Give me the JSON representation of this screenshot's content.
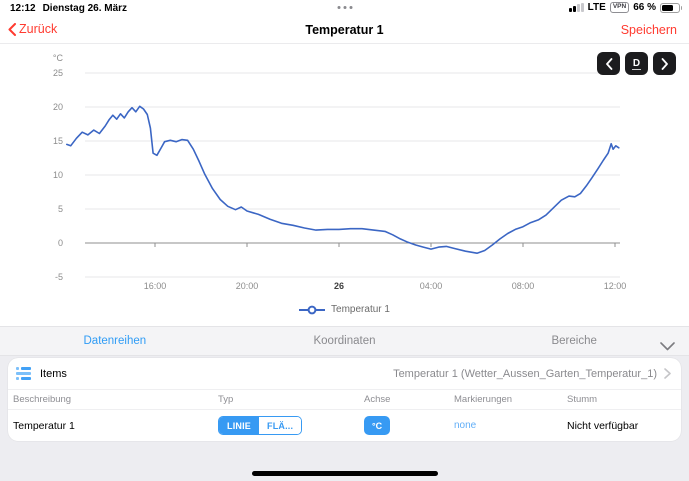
{
  "status_bar": {
    "time": "12:12",
    "date": "Dienstag 26. März",
    "carrier": "LTE",
    "vpn_label": "VPN",
    "battery_text": "66 %"
  },
  "nav": {
    "back_label": "Zurück",
    "title": "Temperatur 1",
    "save_label": "Speichern"
  },
  "chart_toolbar": {
    "range_label": "D"
  },
  "chart_data": {
    "type": "line",
    "unit_label": "°C",
    "ylim": [
      -5,
      25
    ],
    "y_ticks": [
      25,
      20,
      15,
      10,
      5,
      0,
      -5
    ],
    "grid": true,
    "x_axis": {
      "origin": "25.03 12:00",
      "ticks": [
        {
          "label": "16:00",
          "time": "25.03 16:00",
          "emphasis": false
        },
        {
          "label": "20:00",
          "time": "25.03 20:00",
          "emphasis": false
        },
        {
          "label": "26",
          "time": "26.03 00:00",
          "emphasis": true
        },
        {
          "label": "04:00",
          "time": "26.03 04:00",
          "emphasis": false
        },
        {
          "label": "08:00",
          "time": "26.03 08:00",
          "emphasis": false
        },
        {
          "label": "12:00",
          "time": "26.03 12:00",
          "emphasis": false
        }
      ]
    },
    "legend": {
      "position": "bottom"
    },
    "series": [
      {
        "name": "Temperatur 1",
        "color": "#3b66c4",
        "points": [
          [
            "25.03 12:10",
            14.5
          ],
          [
            "25.03 12:20",
            14.3
          ],
          [
            "25.03 12:35",
            15.4
          ],
          [
            "25.03 12:50",
            16.3
          ],
          [
            "25.03 13:05",
            15.9
          ],
          [
            "25.03 13:20",
            16.6
          ],
          [
            "25.03 13:35",
            16.1
          ],
          [
            "25.03 13:50",
            17.2
          ],
          [
            "25.03 14:00",
            18.1
          ],
          [
            "25.03 14:10",
            18.8
          ],
          [
            "25.03 14:20",
            18.2
          ],
          [
            "25.03 14:30",
            19.0
          ],
          [
            "25.03 14:40",
            18.4
          ],
          [
            "25.03 14:50",
            19.3
          ],
          [
            "25.03 15:00",
            19.9
          ],
          [
            "25.03 15:10",
            19.3
          ],
          [
            "25.03 15:20",
            20.1
          ],
          [
            "25.03 15:30",
            19.7
          ],
          [
            "25.03 15:40",
            18.9
          ],
          [
            "25.03 15:48",
            16.9
          ],
          [
            "25.03 15:55",
            13.2
          ],
          [
            "25.03 16:05",
            12.9
          ],
          [
            "25.03 16:15",
            13.9
          ],
          [
            "25.03 16:25",
            14.9
          ],
          [
            "25.03 16:40",
            15.1
          ],
          [
            "25.03 16:55",
            14.9
          ],
          [
            "25.03 17:10",
            15.2
          ],
          [
            "25.03 17:25",
            15.1
          ],
          [
            "25.03 17:40",
            13.8
          ],
          [
            "25.03 17:55",
            12.0
          ],
          [
            "25.03 18:10",
            10.1
          ],
          [
            "25.03 18:30",
            8.0
          ],
          [
            "25.03 18:50",
            6.4
          ],
          [
            "25.03 19:10",
            5.4
          ],
          [
            "25.03 19:30",
            4.9
          ],
          [
            "25.03 19:45",
            5.3
          ],
          [
            "25.03 20:00",
            4.7
          ],
          [
            "25.03 20:30",
            4.2
          ],
          [
            "25.03 21:00",
            3.5
          ],
          [
            "25.03 21:30",
            2.9
          ],
          [
            "25.03 22:00",
            2.6
          ],
          [
            "25.03 22:30",
            2.2
          ],
          [
            "25.03 23:00",
            1.9
          ],
          [
            "25.03 23:30",
            2.0
          ],
          [
            "26.03 00:00",
            2.0
          ],
          [
            "26.03 00:30",
            2.1
          ],
          [
            "26.03 01:00",
            2.1
          ],
          [
            "26.03 01:30",
            1.9
          ],
          [
            "26.03 02:00",
            1.7
          ],
          [
            "26.03 02:20",
            1.2
          ],
          [
            "26.03 02:40",
            0.6
          ],
          [
            "26.03 03:00",
            0.1
          ],
          [
            "26.03 03:20",
            -0.3
          ],
          [
            "26.03 03:40",
            -0.6
          ],
          [
            "26.03 04:00",
            -0.9
          ],
          [
            "26.03 04:20",
            -0.6
          ],
          [
            "26.03 04:40",
            -0.5
          ],
          [
            "26.03 05:00",
            -0.8
          ],
          [
            "26.03 05:30",
            -1.2
          ],
          [
            "26.03 06:00",
            -1.5
          ],
          [
            "26.03 06:20",
            -1.1
          ],
          [
            "26.03 06:40",
            -0.3
          ],
          [
            "26.03 07:00",
            0.6
          ],
          [
            "26.03 07:20",
            1.4
          ],
          [
            "26.03 07:40",
            2.0
          ],
          [
            "26.03 08:00",
            2.4
          ],
          [
            "26.03 08:20",
            3.0
          ],
          [
            "26.03 08:40",
            3.4
          ],
          [
            "26.03 09:00",
            4.1
          ],
          [
            "26.03 09:20",
            5.2
          ],
          [
            "26.03 09:40",
            6.3
          ],
          [
            "26.03 10:00",
            6.9
          ],
          [
            "26.03 10:15",
            6.8
          ],
          [
            "26.03 10:30",
            7.3
          ],
          [
            "26.03 10:45",
            8.4
          ],
          [
            "26.03 11:00",
            9.6
          ],
          [
            "26.03 11:15",
            10.9
          ],
          [
            "26.03 11:30",
            12.2
          ],
          [
            "26.03 11:42",
            13.2
          ],
          [
            "26.03 11:50",
            14.6
          ],
          [
            "26.03 11:55",
            13.8
          ],
          [
            "26.03 12:02",
            14.3
          ],
          [
            "26.03 12:10",
            14.0
          ]
        ]
      }
    ]
  },
  "tabs": [
    {
      "label": "Datenreihen",
      "active": true
    },
    {
      "label": "Koordinaten",
      "active": false
    },
    {
      "label": "Bereiche",
      "active": false
    }
  ],
  "items_section": {
    "label": "Items",
    "value": "Temperatur 1 (Wetter_Aussen_Garten_Temperatur_1)"
  },
  "table": {
    "headers": [
      "Beschreibung",
      "Typ",
      "Achse",
      "Markierungen",
      "Stumm"
    ],
    "row": {
      "description": "Temperatur 1",
      "type_option_line": "LINIE",
      "type_option_area": "FLÄ...",
      "type_selected": "LINIE",
      "axis": "°C",
      "markers": "none",
      "mute": "Nicht verfügbar"
    }
  },
  "colors": {
    "accent_blue": "#379af3",
    "nav_red": "#ff3b30",
    "chart_line": "#3b66c4"
  }
}
